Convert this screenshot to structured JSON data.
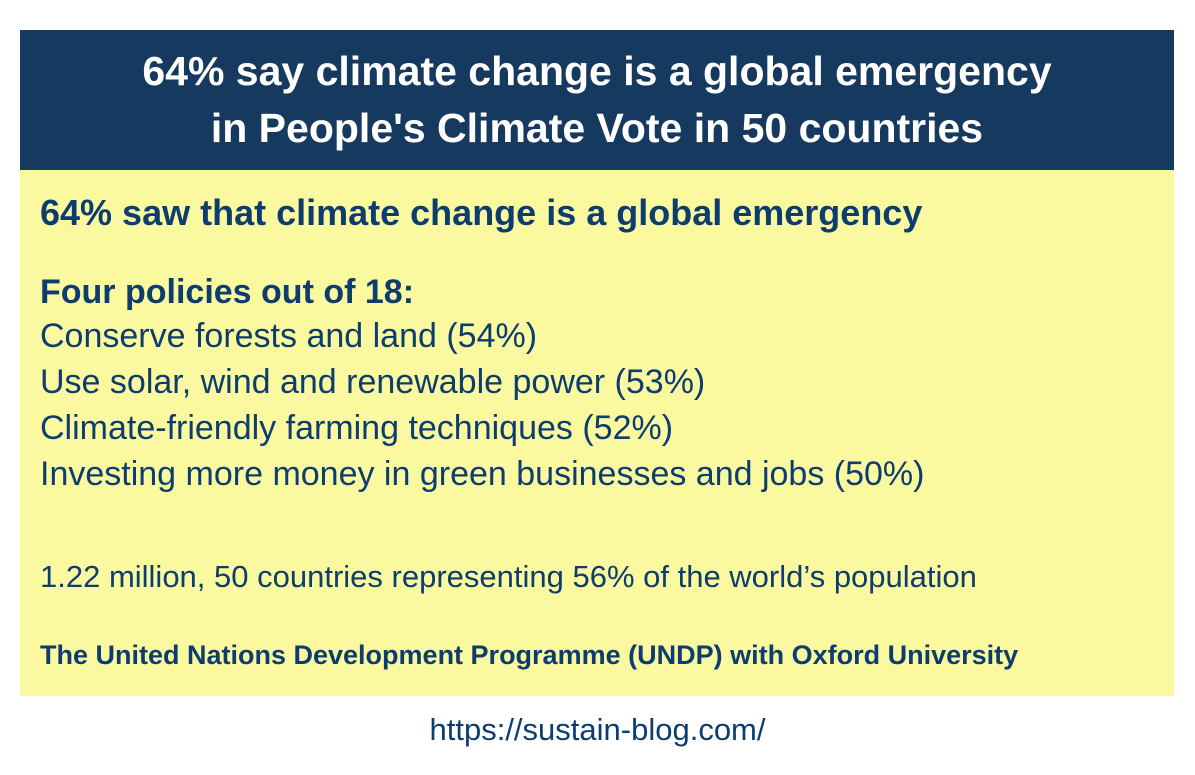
{
  "colors": {
    "page_bg": "#FFFFFF",
    "header_bg": "#16395F",
    "header_text": "#FFFFFF",
    "body_bg": "#FAF9A0",
    "body_text": "#0D3C6E"
  },
  "header": {
    "line1": "64% say climate change is a global emergency",
    "line2": "in People's Climate Vote in 50 countries"
  },
  "body": {
    "headline": "64% saw that climate change is a global emergency",
    "policies_heading": "Four policies out of 18:",
    "policies": [
      "Conserve forests and land (54%)",
      "Use solar, wind and renewable power (53%)",
      "Climate-friendly farming techniques (52%)",
      "Investing more money in green businesses and jobs (50%)"
    ],
    "sample_note": "1.22 million, 50 countries representing 56% of the world’s population",
    "source_note": "The United Nations Development Programme (UNDP) with Oxford University"
  },
  "footer": {
    "url": "https://sustain-blog.com/"
  }
}
